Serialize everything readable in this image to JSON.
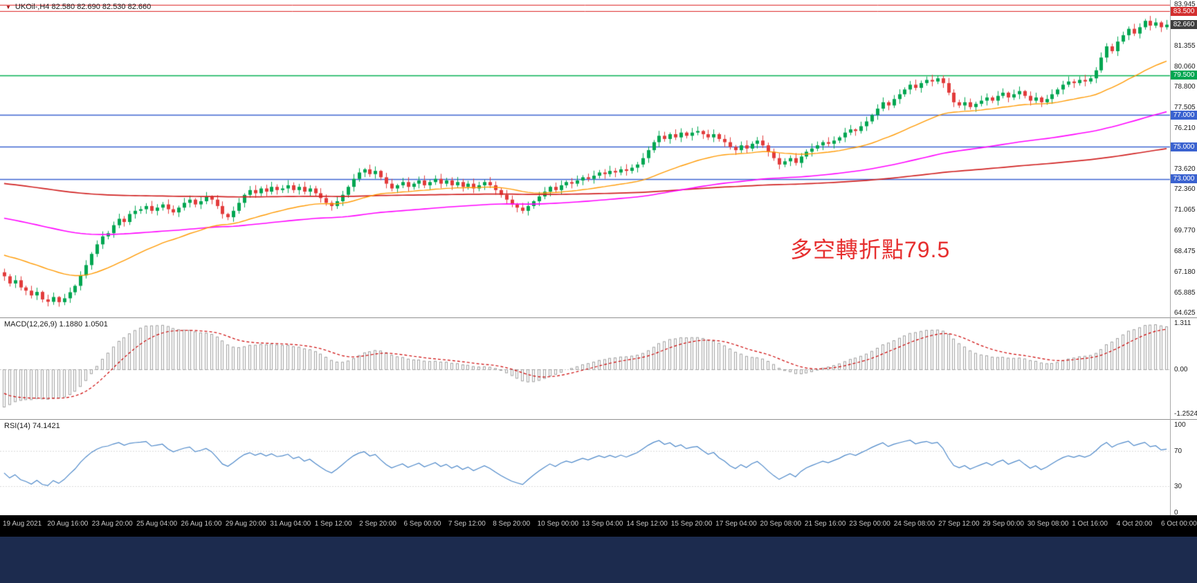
{
  "header": {
    "marker": "▼",
    "symbol_period": "UKOil-,H4",
    "ohlc_values": "82.580 82.690 82.530 82.660"
  },
  "annotation": {
    "text": "多空轉折點79.5"
  },
  "panels": {
    "macd": {
      "label": "MACD(12,26,9) 1.1880 1.0501",
      "scale_max": "1.311",
      "scale_zero": "0.00",
      "scale_min": "-1.2524"
    },
    "rsi": {
      "label": "RSI(14) 74.1421",
      "scale_labels": [
        "100",
        "70",
        "30",
        "0"
      ]
    }
  },
  "price_scale": {
    "ticks": [
      {
        "text": "83.945",
        "value": 83.945
      },
      {
        "text": "81.355",
        "value": 81.355
      },
      {
        "text": "80.060",
        "value": 80.06
      },
      {
        "text": "78.800",
        "value": 78.8
      },
      {
        "text": "77.505",
        "value": 77.505
      },
      {
        "text": "76.210",
        "value": 76.21
      },
      {
        "text": "73.620",
        "value": 73.62
      },
      {
        "text": "72.360",
        "value": 72.36
      },
      {
        "text": "71.065",
        "value": 71.065
      },
      {
        "text": "69.770",
        "value": 69.77
      },
      {
        "text": "68.475",
        "value": 68.475
      },
      {
        "text": "67.180",
        "value": 67.18
      },
      {
        "text": "65.885",
        "value": 65.885
      },
      {
        "text": "64.625",
        "value": 64.625
      }
    ]
  },
  "time_axis": {
    "labels": [
      "19 Aug 2021",
      "20 Aug 16:00",
      "23 Aug 20:00",
      "25 Aug 04:00",
      "26 Aug 16:00",
      "29 Aug 20:00",
      "31 Aug 04:00",
      "1 Sep 12:00",
      "2 Sep 20:00",
      "6 Sep 00:00",
      "7 Sep 12:00",
      "8 Sep 20:00",
      "10 Sep 00:00",
      "13 Sep 04:00",
      "14 Sep 12:00",
      "15 Sep 20:00",
      "17 Sep 04:00",
      "20 Sep 08:00",
      "21 Sep 16:00",
      "23 Sep 00:00",
      "24 Sep 08:00",
      "27 Sep 12:00",
      "29 Sep 00:00",
      "30 Sep 08:00",
      "1 Oct 16:00",
      "4 Oct 20:00",
      "6 Oct 00:00"
    ]
  },
  "colors": {
    "bull": "#00A651",
    "bear": "#E23B3B",
    "ma_fast": "#FF9900",
    "ma_mid": "#FF00FF",
    "ma_slow": "#D02020",
    "hline_red": "#DD2222",
    "hline_green": "#00B050",
    "hline_blue": "#3A62D0",
    "badge_red": "#D32F2F",
    "badge_green": "#00A651",
    "badge_blue": "#3A62D0",
    "badge_dark": "#3F3F3F",
    "macd_hist": "#9F9F9F",
    "macd_signal": "#CC0000",
    "rsi": "#4A86C8",
    "annotation": "#E62E2E",
    "axis_bg": "#000000",
    "axis_text": "#C9C9C9",
    "taskbar": "#1C2B4E",
    "separator": "#919191"
  },
  "chart_data": {
    "type": "candlestick",
    "symbol": "UKOil-",
    "timeframe": "H4",
    "title": "UKOil-,H4 82.580 82.690 82.530 82.660",
    "price_range": [
      64.625,
      83.945
    ],
    "closes": [
      66.9,
      66.45,
      66.65,
      66.2,
      66.0,
      65.7,
      65.92,
      65.45,
      65.3,
      65.6,
      65.28,
      65.52,
      65.9,
      66.3,
      66.95,
      67.6,
      68.3,
      68.9,
      69.4,
      69.6,
      70.1,
      70.5,
      70.3,
      70.8,
      71.0,
      71.1,
      71.3,
      71.0,
      71.2,
      71.4,
      71.1,
      70.9,
      71.2,
      71.5,
      71.7,
      71.4,
      71.6,
      71.9,
      71.7,
      71.3,
      70.8,
      70.6,
      71.0,
      71.5,
      72.0,
      72.3,
      72.1,
      72.4,
      72.2,
      72.5,
      72.3,
      72.4,
      72.6,
      72.3,
      72.5,
      72.2,
      72.4,
      72.1,
      71.8,
      71.5,
      71.3,
      71.6,
      72.0,
      72.5,
      73.0,
      73.4,
      73.6,
      73.3,
      73.5,
      73.1,
      72.7,
      72.4,
      72.6,
      72.8,
      72.5,
      72.7,
      72.9,
      72.6,
      72.8,
      73.0,
      72.7,
      72.9,
      72.6,
      72.8,
      72.5,
      72.7,
      72.4,
      72.6,
      72.8,
      72.6,
      72.3,
      72.0,
      71.7,
      71.4,
      71.2,
      71.0,
      71.3,
      71.6,
      71.9,
      72.2,
      72.5,
      72.3,
      72.6,
      72.8,
      72.7,
      72.9,
      73.1,
      73.0,
      73.2,
      73.4,
      73.3,
      73.5,
      73.4,
      73.6,
      73.5,
      73.7,
      73.9,
      74.3,
      74.8,
      75.3,
      75.7,
      75.5,
      75.8,
      75.6,
      75.9,
      75.7,
      75.9,
      76.0,
      75.8,
      75.6,
      75.8,
      75.5,
      75.3,
      75.0,
      74.8,
      75.1,
      74.9,
      75.2,
      75.4,
      75.1,
      74.7,
      74.3,
      73.9,
      74.1,
      74.3,
      74.0,
      74.4,
      74.7,
      74.9,
      75.1,
      75.3,
      75.2,
      75.4,
      75.6,
      75.9,
      76.1,
      76.0,
      76.3,
      76.6,
      77.0,
      77.4,
      77.8,
      77.6,
      78.0,
      78.3,
      78.6,
      78.9,
      78.7,
      79.0,
      79.2,
      79.1,
      79.3,
      79.0,
      78.4,
      77.8,
      77.6,
      77.8,
      77.5,
      77.7,
      77.9,
      78.1,
      77.9,
      78.2,
      78.4,
      78.1,
      78.3,
      78.5,
      78.2,
      77.9,
      78.1,
      77.8,
      78.0,
      78.3,
      78.6,
      78.9,
      79.1,
      79.0,
      79.2,
      79.1,
      79.3,
      79.8,
      80.6,
      81.3,
      81.0,
      81.6,
      82.0,
      82.4,
      82.1,
      82.5,
      82.9,
      82.6,
      82.8,
      82.5,
      82.66
    ],
    "moving_averages": [
      {
        "name": "slow",
        "period": 300,
        "seed": 72.75,
        "width": 1.7,
        "color_key": "ma_slow"
      },
      {
        "name": "mid",
        "period": 120,
        "seed": 70.6,
        "width": 1.6,
        "color_key": "ma_mid"
      },
      {
        "name": "fast",
        "period": 34,
        "seed": 68.3,
        "width": 1.4,
        "color_key": "ma_fast"
      }
    ],
    "hlines": [
      {
        "value": 83.9,
        "color_key": "hline_red"
      },
      {
        "value": 83.5,
        "color_key": "hline_red",
        "badge": "83.500",
        "badge_key": "badge_red"
      },
      {
        "value": 79.5,
        "color_key": "hline_green",
        "badge": "79.500",
        "badge_key": "badge_green"
      },
      {
        "value": 77.0,
        "color_key": "hline_blue",
        "badge": "77.000",
        "badge_key": "badge_blue"
      },
      {
        "value": 75.0,
        "color_key": "hline_blue",
        "badge": "75.000",
        "badge_key": "badge_blue"
      },
      {
        "value": 73.0,
        "color_key": "hline_blue",
        "badge": "73.000",
        "badge_key": "badge_blue"
      }
    ],
    "current_price": {
      "value": 82.66,
      "badge": "82.660",
      "badge_key": "badge_dark"
    },
    "macd": {
      "fast": 12,
      "slow": 26,
      "signal": 9,
      "current_macd": 1.188,
      "current_signal": 1.0501,
      "scale": [
        -1.2524,
        1.311
      ]
    },
    "rsi": {
      "period": 14,
      "current": 74.1421,
      "levels": [
        70,
        30
      ],
      "range": [
        0,
        100
      ]
    }
  }
}
